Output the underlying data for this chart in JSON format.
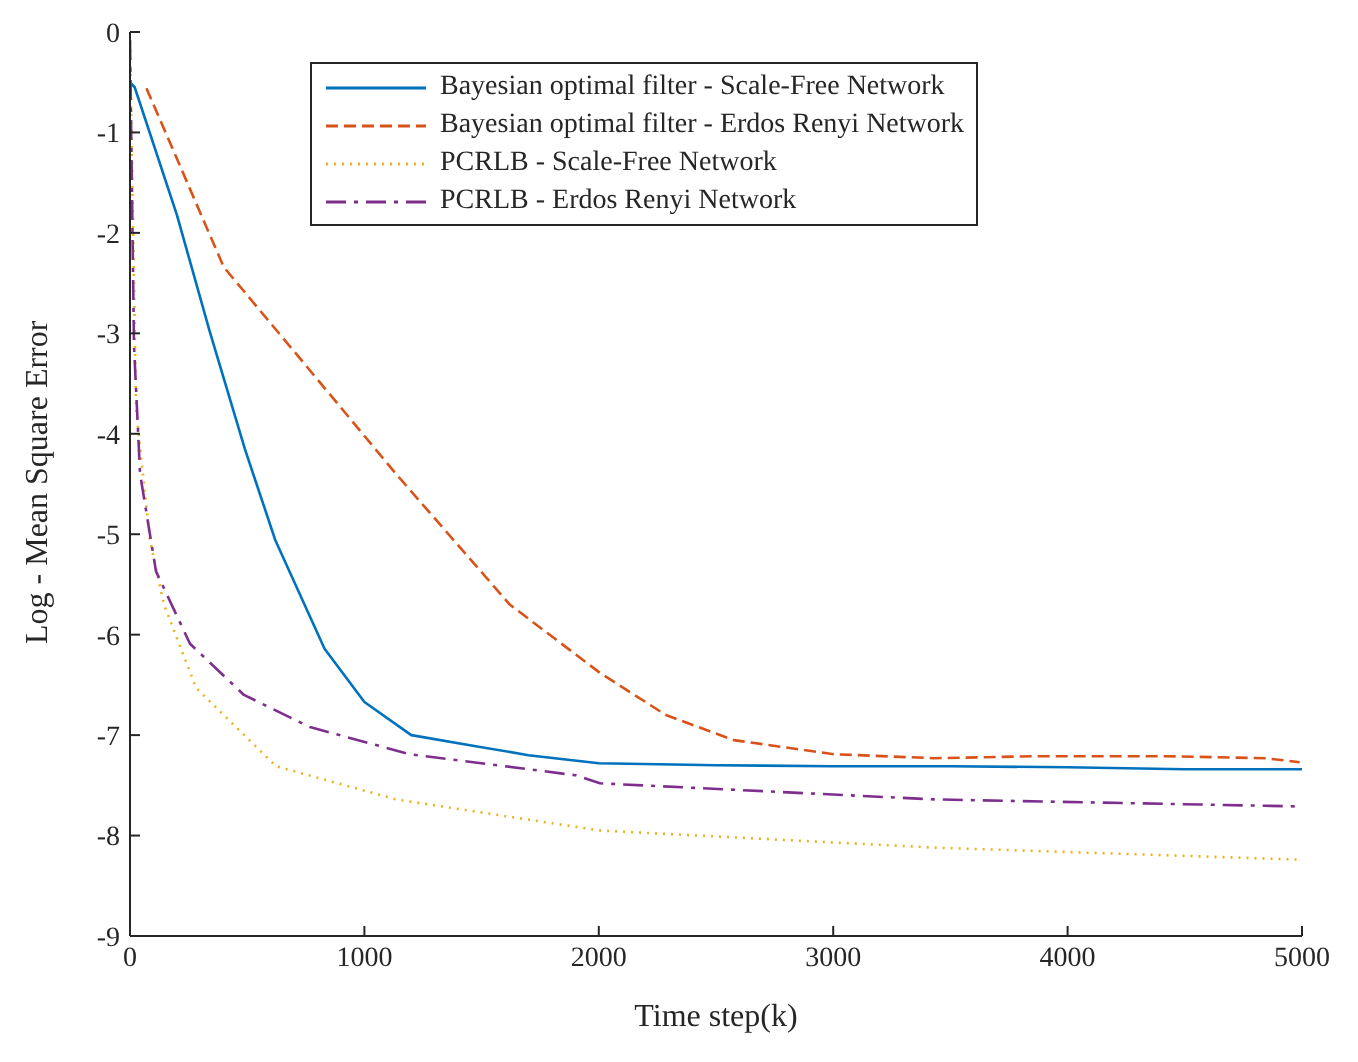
{
  "chart_data": {
    "type": "line",
    "xlabel": "Time step(k)",
    "ylabel": "Log - Mean Square Error",
    "xlim": [
      0,
      5000
    ],
    "xticks": [
      0,
      1000,
      2000,
      3000,
      4000,
      5000
    ],
    "ylim": [
      -9,
      0
    ],
    "yticks": [
      -9,
      -8,
      -7,
      -6,
      -5,
      -4,
      -3,
      -2,
      -1,
      0
    ],
    "grid": false,
    "legend": "top",
    "marker": "none",
    "series": [
      {
        "name": "Bayesian optimal filter - Scale-Free Network",
        "color": "#0072bd",
        "line_style": "solid",
        "x": [
          0,
          20,
          200,
          340,
          490,
          620,
          830,
          1000,
          1200,
          1475,
          1700,
          2000,
          2500,
          3000,
          3500,
          4000,
          4500,
          5000
        ],
        "values": [
          -0.5,
          -0.55,
          -1.82,
          -2.98,
          -4.15,
          -5.06,
          -6.14,
          -6.67,
          -7.0,
          -7.11,
          -7.2,
          -7.28,
          -7.3,
          -7.31,
          -7.31,
          -7.32,
          -7.34,
          -7.34
        ]
      },
      {
        "name": "Bayesian optimal filter - Erdos Renyi Network",
        "color": "#d95319",
        "line_style": "dashed",
        "x": [
          70,
          400,
          768,
          1135,
          1620,
          2005,
          2286,
          2576,
          3003,
          3430,
          3856,
          4420,
          4845,
          4990
        ],
        "values": [
          -0.56,
          -2.34,
          -3.37,
          -4.4,
          -5.7,
          -6.38,
          -6.8,
          -7.05,
          -7.19,
          -7.23,
          -7.21,
          -7.21,
          -7.23,
          -7.27
        ]
      },
      {
        "name": "PCRLB - Scale-Free Network",
        "color": "#edb120",
        "line_style": "dotted",
        "x": [
          0,
          26,
          85,
          145,
          282,
          623,
          1135,
          2005,
          3430,
          4990
        ],
        "values": [
          -0.1,
          -3.76,
          -5.06,
          -5.7,
          -6.53,
          -7.31,
          -7.64,
          -7.95,
          -8.12,
          -8.24
        ]
      },
      {
        "name": "PCRLB - Erdos Renyi Network",
        "color": "#7e2f8e",
        "line_style": "dashdot",
        "x": [
          0,
          17,
          43,
          111,
          256,
          486,
          768,
          1194,
          1902,
          2005,
          3430,
          4990
        ],
        "values": [
          -0.08,
          -3.12,
          -4.4,
          -5.37,
          -6.09,
          -6.6,
          -6.92,
          -7.19,
          -7.4,
          -7.48,
          -7.64,
          -7.71
        ]
      }
    ]
  }
}
